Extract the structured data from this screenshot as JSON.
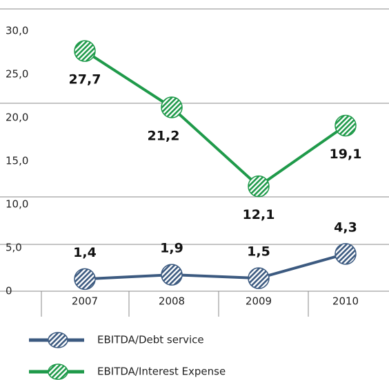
{
  "chart_data": {
    "type": "line",
    "categories": [
      "2007",
      "2008",
      "2009",
      "2010"
    ],
    "series": [
      {
        "name": "EBITDA/Debt service",
        "color": "#3c5a80",
        "values": [
          1.4,
          1.9,
          1.5,
          4.3
        ],
        "value_labels": [
          "1,4",
          "1,9",
          "1,5",
          "4,3"
        ]
      },
      {
        "name": "EBITDA/Interest Expense",
        "color": "#1f9a4a",
        "values": [
          27.7,
          21.2,
          12.1,
          19.1
        ],
        "value_labels": [
          "27,7",
          "21,2",
          "12,1",
          "19,1"
        ]
      }
    ],
    "ylim": [
      0,
      32
    ],
    "yticks": [
      0,
      {
        "value": 5,
        "label": "5,0"
      },
      {
        "value": 10,
        "label": "10,0"
      },
      {
        "value": 15,
        "label": "15,0"
      },
      {
        "value": 20,
        "label": "20,0"
      },
      {
        "value": 25,
        "label": "25,0"
      },
      {
        "value": 30,
        "label": "30,0"
      }
    ],
    "grid": false,
    "legend": "bottom"
  }
}
